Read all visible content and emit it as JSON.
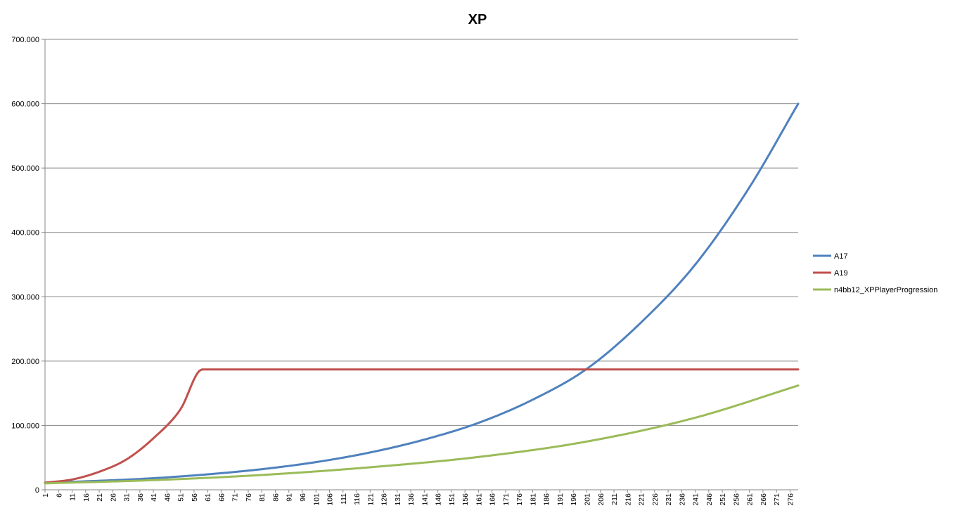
{
  "chart_data": {
    "type": "line",
    "title": "XP",
    "xlabel": "",
    "ylabel": "",
    "x": {
      "start": 1,
      "end": 279,
      "tick_labels": [
        "1",
        "6",
        "11",
        "16",
        "21",
        "26",
        "31",
        "36",
        "41",
        "46",
        "51",
        "56",
        "61",
        "66",
        "71",
        "76",
        "81",
        "86",
        "91",
        "96",
        "101",
        "106",
        "111",
        "116",
        "121",
        "126",
        "131",
        "136",
        "141",
        "146",
        "151",
        "156",
        "161",
        "166",
        "171",
        "176",
        "181",
        "186",
        "191",
        "196",
        "201",
        "206",
        "211",
        "216",
        "221",
        "226",
        "231",
        "236",
        "241",
        "246",
        "251",
        "256",
        "261",
        "266",
        "271",
        "276"
      ]
    },
    "ylim": [
      0,
      700000
    ],
    "yticks": [
      0,
      100000,
      200000,
      300000,
      400000,
      500000,
      600000,
      700000
    ],
    "ytick_labels": [
      "0",
      "100.000",
      "200.000",
      "300.000",
      "400.000",
      "500.000",
      "600.000",
      "700.000"
    ],
    "grid": "horizontal",
    "legend": "right",
    "series": [
      {
        "name": "A17",
        "color": "#4f81bd",
        "x": [
          1,
          21,
          41,
          61,
          81,
          101,
          121,
          141,
          161,
          181,
          201,
          221,
          241,
          261,
          279
        ],
        "values": [
          11000,
          14000,
          18000,
          24000,
          32000,
          43000,
          58000,
          78000,
          104000,
          140000,
          188000,
          260000,
          350000,
          470000,
          600000
        ]
      },
      {
        "name": "A19",
        "color": "#c0504d",
        "x": [
          1,
          11,
          21,
          31,
          41,
          51,
          59,
          279
        ],
        "values": [
          11000,
          16000,
          28000,
          47000,
          80000,
          125000,
          187000,
          187000
        ]
      },
      {
        "name": "n4bb12_XPPlayerProgression",
        "color": "#9bbb59",
        "x": [
          1,
          41,
          81,
          121,
          161,
          201,
          241,
          279
        ],
        "values": [
          10000,
          15000,
          23000,
          35000,
          51000,
          75000,
          112000,
          162000
        ]
      }
    ]
  }
}
